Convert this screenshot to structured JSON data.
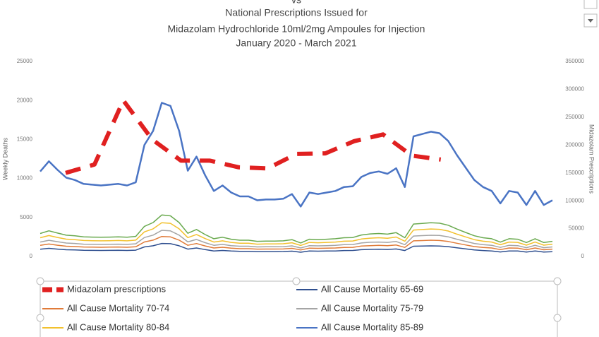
{
  "chart_data": {
    "type": "line",
    "title_lines": [
      "vs",
      "National Prescriptions Issued for",
      "Midazolam Hydrochloride 10ml/2mg Ampoules for Injection",
      "January 2020 - March 2021"
    ],
    "y_label": "Weekly Deaths",
    "y2_label": "Midazolam Prescriptions",
    "ylim": [
      0,
      25000
    ],
    "yticks": [
      0,
      5000,
      10000,
      15000,
      20000,
      25000
    ],
    "y2lim": [
      0,
      350000
    ],
    "y2ticks": [
      0,
      50000,
      100000,
      150000,
      200000,
      250000,
      300000,
      350000
    ],
    "grid": false,
    "legend": "bottom",
    "series": [
      {
        "name": "Midazolam prescriptions",
        "color": "#e02020",
        "axis": "y2",
        "style": "dashed",
        "values": [
          150000,
          165000,
          280000,
          210000,
          172000,
          172000,
          160000,
          158000,
          184000,
          185000,
          207000,
          219000,
          181000,
          174000
        ]
      },
      {
        "name": "All Cause Mortality 65-69",
        "color": "#2f4f8f",
        "values": [
          930,
          1040,
          940,
          860,
          830,
          790,
          780,
          770,
          780,
          790,
          770,
          810,
          1220,
          1370,
          1670,
          1640,
          1370,
          940,
          1090,
          880,
          710,
          770,
          700,
          650,
          650,
          610,
          620,
          620,
          630,
          680,
          540,
          700,
          680,
          700,
          710,
          760,
          770,
          870,
          910,
          930,
          900,
          960,
          760,
          1310,
          1330,
          1360,
          1340,
          1260,
          1110,
          970,
          830,
          760,
          710,
          580,
          710,
          700,
          560,
          710,
          560,
          610
        ]
      },
      {
        "name": "All Cause Mortality 70-74",
        "color": "#e07b39",
        "values": [
          1420,
          1590,
          1440,
          1310,
          1270,
          1210,
          1200,
          1180,
          1200,
          1210,
          1180,
          1240,
          1860,
          2090,
          2560,
          2510,
          2090,
          1430,
          1660,
          1350,
          1090,
          1180,
          1070,
          1000,
          1000,
          940,
          950,
          950,
          960,
          1040,
          830,
          1070,
          1040,
          1070,
          1090,
          1160,
          1170,
          1330,
          1390,
          1420,
          1380,
          1470,
          1160,
          2000,
          2040,
          2080,
          2050,
          1920,
          1690,
          1480,
          1270,
          1160,
          1090,
          880,
          1090,
          1070,
          860,
          1090,
          860,
          940
        ]
      },
      {
        "name": "All Cause Mortality 75-79",
        "color": "#a5a5a5",
        "values": [
          1850,
          2070,
          1890,
          1720,
          1670,
          1580,
          1560,
          1550,
          1560,
          1580,
          1550,
          1620,
          2430,
          2740,
          3350,
          3280,
          2740,
          1870,
          2180,
          1770,
          1430,
          1550,
          1390,
          1310,
          1310,
          1220,
          1240,
          1240,
          1260,
          1360,
          1090,
          1390,
          1360,
          1390,
          1430,
          1510,
          1530,
          1730,
          1820,
          1850,
          1800,
          1920,
          1510,
          2620,
          2670,
          2720,
          2690,
          2520,
          2210,
          1940,
          1670,
          1510,
          1430,
          1160,
          1430,
          1390,
          1120,
          1430,
          1120,
          1220
        ]
      },
      {
        "name": "All Cause Mortality 80-84",
        "color": "#f2c12e",
        "values": [
          2400,
          2680,
          2440,
          2220,
          2160,
          2050,
          2020,
          2000,
          2020,
          2050,
          2000,
          2090,
          3150,
          3540,
          4330,
          4250,
          3540,
          2420,
          2820,
          2290,
          1850,
          2000,
          1800,
          1690,
          1690,
          1580,
          1610,
          1610,
          1630,
          1760,
          1410,
          1800,
          1760,
          1800,
          1850,
          1960,
          1980,
          2240,
          2350,
          2400,
          2330,
          2490,
          1960,
          3390,
          3450,
          3520,
          3480,
          3260,
          2860,
          2510,
          2160,
          1960,
          1850,
          1500,
          1850,
          1800,
          1450,
          1850,
          1450,
          1580
        ]
      },
      {
        "name": "All Cause Mortality 85-89",
        "color": "#4a74c4",
        "values": [
          10900,
          12200,
          11100,
          10100,
          9800,
          9300,
          9200,
          9100,
          9200,
          9300,
          9100,
          9500,
          14300,
          16100,
          19700,
          19300,
          16100,
          11000,
          12800,
          10400,
          8400,
          9100,
          8200,
          7700,
          7700,
          7200,
          7300,
          7300,
          7400,
          8000,
          6400,
          8200,
          8000,
          8200,
          8400,
          8900,
          9000,
          10200,
          10700,
          10900,
          10600,
          11300,
          8900,
          15400,
          15700,
          16000,
          15800,
          14800,
          13000,
          11400,
          9800,
          8900,
          8400,
          6800,
          8400,
          8200,
          6600,
          8400,
          6600,
          7200
        ]
      },
      {
        "color": "#6aaa4f",
        "values": [
          2940,
          3290,
          3000,
          2730,
          2650,
          2510,
          2480,
          2460,
          2480,
          2510,
          2460,
          2570,
          3860,
          4350,
          5320,
          5210,
          4350,
          2970,
          3460,
          2810,
          2270,
          2460,
          2210,
          2080,
          2080,
          1940,
          1970,
          1970,
          2000,
          2160,
          1730,
          2210,
          2160,
          2210,
          2270,
          2400,
          2430,
          2750,
          2890,
          2940,
          2860,
          3050,
          2400,
          4160,
          4240,
          4320,
          4270,
          4000,
          3510,
          3080,
          2650,
          2400,
          2270,
          1840,
          2270,
          2210,
          1780,
          2270,
          1780,
          1940
        ]
      }
    ]
  }
}
